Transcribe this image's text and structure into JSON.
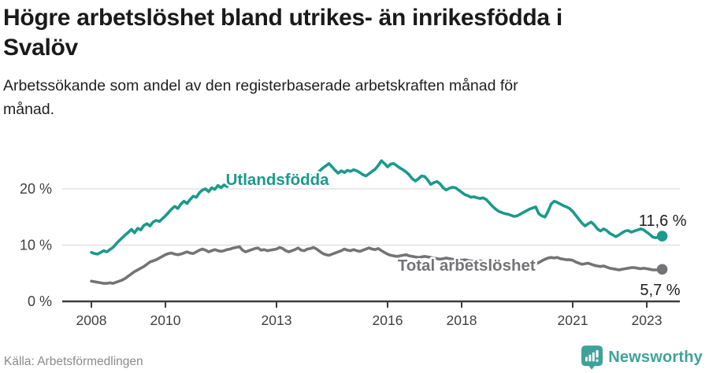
{
  "header": {
    "title_lines": [
      "Högre arbetslöshet bland utrikes- än inrikesfödda i",
      "Svalöv"
    ],
    "subtitle_lines": [
      "Arbetssökande som andel av den registerbaserade arbetskraften månad för",
      "månad."
    ]
  },
  "footer": {
    "source": "Källa: Arbetsförmedlingen",
    "brand": "Newsworthy"
  },
  "colors": {
    "series_foreign": "#199a8c",
    "series_total": "#747477",
    "grid": "#dcdcdc",
    "axis": "#3c3c3c",
    "axis_text": "#404040",
    "value_label": "#1d1d1d",
    "brand_teal": "#3fa29a"
  },
  "chart_data": {
    "type": "line",
    "title": "Högre arbetslöshet bland utrikes- än inrikesfödda i Svalöv",
    "subtitle": "Arbetssökande som andel av den registerbaserade arbetskraften månad för månad.",
    "xlabel": "",
    "ylabel": "",
    "unit": "%",
    "grid": "horizontal",
    "legend_position": "inline-annotations",
    "xlim": [
      2007.8,
      2023.95
    ],
    "ylim": [
      0,
      26.2
    ],
    "x_ticks": [
      2008,
      2010,
      2013,
      2016,
      2018,
      2021,
      2023
    ],
    "x_tick_labels": [
      "2008",
      "2010",
      "2013",
      "2016",
      "2018",
      "2021",
      "2023"
    ],
    "y_ticks": [
      {
        "value": 0,
        "label": "0 %"
      },
      {
        "value": 10,
        "label": "10 %"
      },
      {
        "value": 20,
        "label": "20 %"
      }
    ],
    "series": [
      {
        "name": "Utlandsfödda",
        "color": "#199a8c",
        "start_year": 2008,
        "interval_months": 1,
        "end_value": 11.6,
        "end_label": "11,6 %",
        "label_anchor": {
          "x": 2011.63,
          "y": 21.7
        },
        "values": [
          8.7,
          8.5,
          8.4,
          8.7,
          9.0,
          8.8,
          9.2,
          9.6,
          10.2,
          10.8,
          11.3,
          11.8,
          12.3,
          12.8,
          12.2,
          13.0,
          12.7,
          13.5,
          13.8,
          13.4,
          14.1,
          14.4,
          14.2,
          14.7,
          15.2,
          15.8,
          16.4,
          16.9,
          16.5,
          17.3,
          17.8,
          17.4,
          18.1,
          18.7,
          18.5,
          19.3,
          19.8,
          20.0,
          19.5,
          20.2,
          19.9,
          20.6,
          20.2,
          20.7,
          20.4,
          21.1,
          20.8,
          21.4,
          21.6,
          21.2,
          21.8,
          21.5,
          21.1,
          21.3,
          20.9,
          21.2,
          20.7,
          21.0,
          20.8,
          21.0,
          20.9,
          21.2,
          21.0,
          21.4,
          21.2,
          21.7,
          21.9,
          21.6,
          22.0,
          22.3,
          22.0,
          22.4,
          22.2,
          22.7,
          23.2,
          23.7,
          24.1,
          24.5,
          23.9,
          23.3,
          22.8,
          23.2,
          22.9,
          23.3,
          23.1,
          23.4,
          23.2,
          22.9,
          22.5,
          22.3,
          22.7,
          23.1,
          23.5,
          24.2,
          25.0,
          24.5,
          23.9,
          24.4,
          24.5,
          24.1,
          23.7,
          23.4,
          23.0,
          22.5,
          21.8,
          21.4,
          21.8,
          22.3,
          22.2,
          21.6,
          20.8,
          21.1,
          21.3,
          20.9,
          20.2,
          19.8,
          20.1,
          20.3,
          20.2,
          19.8,
          19.4,
          19.0,
          18.8,
          18.5,
          18.6,
          18.4,
          18.3,
          18.4,
          18.1,
          17.5,
          16.9,
          16.4,
          16.0,
          15.8,
          15.6,
          15.5,
          15.3,
          15.1,
          15.2,
          15.5,
          15.8,
          16.1,
          16.4,
          16.6,
          16.8,
          15.6,
          15.2,
          15.0,
          16.0,
          17.3,
          17.8,
          17.6,
          17.3,
          17.0,
          16.8,
          16.5,
          16.0,
          15.3,
          14.6,
          13.9,
          13.4,
          13.8,
          14.1,
          13.6,
          12.9,
          12.5,
          12.9,
          12.6,
          12.1,
          11.8,
          11.5,
          11.8,
          12.2,
          12.5,
          12.6,
          12.3,
          12.5,
          12.7,
          12.9,
          12.7,
          12.3,
          11.9,
          11.4,
          11.3,
          11.5,
          11.6
        ]
      },
      {
        "name": "Total arbetslöshet",
        "color": "#747477",
        "start_year": 2008,
        "interval_months": 1,
        "end_value": 5.7,
        "end_label": "5,7 %",
        "label_anchor": {
          "x": 2016.27,
          "y": 6.4
        },
        "values": [
          3.6,
          3.5,
          3.4,
          3.3,
          3.2,
          3.2,
          3.3,
          3.2,
          3.4,
          3.6,
          3.8,
          4.1,
          4.5,
          4.9,
          5.3,
          5.6,
          5.9,
          6.2,
          6.6,
          7.0,
          7.2,
          7.4,
          7.7,
          8.0,
          8.3,
          8.5,
          8.6,
          8.4,
          8.3,
          8.4,
          8.6,
          8.8,
          8.6,
          8.5,
          8.8,
          9.1,
          9.3,
          9.1,
          8.8,
          9.0,
          9.2,
          9.0,
          8.9,
          9.0,
          9.2,
          9.3,
          9.5,
          9.6,
          9.7,
          9.1,
          8.8,
          9.0,
          9.2,
          9.4,
          9.5,
          9.1,
          9.2,
          9.0,
          9.1,
          9.2,
          9.3,
          9.6,
          9.4,
          9.0,
          8.8,
          9.0,
          9.2,
          9.5,
          9.1,
          9.0,
          9.3,
          9.4,
          9.6,
          9.3,
          8.9,
          8.5,
          8.3,
          8.2,
          8.4,
          8.6,
          8.8,
          9.0,
          9.3,
          9.1,
          9.0,
          9.2,
          9.0,
          8.9,
          9.1,
          9.3,
          9.5,
          9.3,
          9.2,
          9.4,
          9.0,
          8.7,
          8.4,
          8.2,
          8.1,
          8.0,
          8.1,
          8.2,
          8.3,
          8.1,
          8.0,
          7.9,
          7.8,
          7.9,
          8.0,
          7.9,
          7.8,
          7.7,
          7.6,
          7.5,
          7.6,
          7.7,
          7.6,
          7.5,
          7.4,
          7.4,
          7.3,
          7.4,
          7.3,
          7.2,
          7.1,
          7.1,
          7.2,
          7.1,
          7.0,
          6.9,
          6.9,
          6.8,
          6.8,
          6.7,
          6.6,
          6.5,
          6.6,
          6.7,
          6.8,
          6.7,
          6.6,
          6.6,
          6.5,
          6.6,
          6.7,
          6.9,
          7.2,
          7.5,
          7.7,
          7.8,
          7.7,
          7.8,
          7.6,
          7.5,
          7.4,
          7.4,
          7.3,
          7.0,
          6.8,
          6.6,
          6.7,
          6.8,
          6.6,
          6.4,
          6.3,
          6.2,
          6.3,
          6.1,
          5.9,
          5.8,
          5.7,
          5.6,
          5.7,
          5.8,
          5.9,
          6.0,
          6.0,
          5.9,
          5.8,
          5.9,
          5.8,
          5.7,
          5.6,
          5.6,
          5.6,
          5.7
        ]
      }
    ]
  }
}
